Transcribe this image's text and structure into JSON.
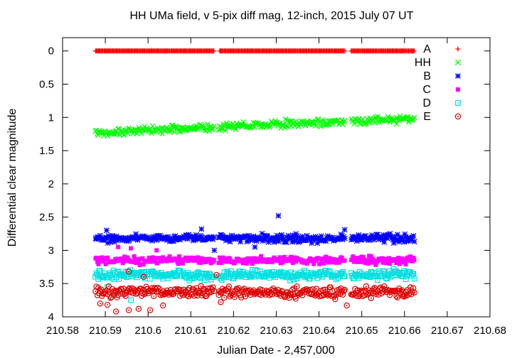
{
  "chart_data": {
    "type": "scatter",
    "title": "HH UMa field, v 5-pix diff mag, 12-inch, 2015 July 07 UT",
    "xlabel": "Julian Date - 2,457,000",
    "ylabel": "Differential clear magnitude",
    "xlim": [
      210.58,
      210.68
    ],
    "ylim": [
      4,
      -0.2
    ],
    "y_inverted": true,
    "x_ticks": [
      "210.58",
      "210.59",
      "210.6",
      "210.61",
      "210.62",
      "210.63",
      "210.64",
      "210.65",
      "210.66",
      "210.67",
      "210.68"
    ],
    "y_ticks": [
      "0",
      "0.5",
      "1",
      "1.5",
      "2",
      "2.5",
      "3",
      "3.5",
      "4"
    ],
    "x_tick_values": [
      210.58,
      210.59,
      210.6,
      210.61,
      210.62,
      210.63,
      210.64,
      210.65,
      210.66,
      210.67,
      210.68
    ],
    "y_tick_values": [
      0,
      0.5,
      1,
      1.5,
      2,
      2.5,
      3,
      3.5,
      4
    ],
    "grid": false,
    "legend_position": "top-right",
    "x_range_observed": [
      210.5877,
      210.6623
    ],
    "gap_ranges": [
      [
        210.6155,
        210.6165
      ],
      [
        210.6462,
        210.6475
      ]
    ],
    "series": [
      {
        "name": "A",
        "marker": "plus",
        "color": "#ff0000",
        "mean": 0.0,
        "trend": 0.0,
        "scatter": 0.0,
        "outliers": []
      },
      {
        "name": "HH",
        "marker": "cross",
        "color": "#00ff00",
        "mean": 1.23,
        "trend": -0.22,
        "scatter": 0.05,
        "outliers": []
      },
      {
        "name": "B",
        "marker": "star",
        "color": "#0000ff",
        "mean": 2.82,
        "trend": 0.0,
        "scatter": 0.05,
        "outliers": [
          [
            210.6305,
            2.48
          ],
          [
            210.6125,
            2.68
          ],
          [
            210.5903,
            2.7
          ],
          [
            210.646,
            2.69
          ],
          [
            210.6155,
            3.0
          ],
          [
            210.625,
            2.95
          ]
        ]
      },
      {
        "name": "C",
        "marker": "filled-square",
        "color": "#ff00ff",
        "mean": 3.15,
        "trend": 0.0,
        "scatter": 0.05,
        "outliers": [
          [
            210.593,
            2.95
          ],
          [
            210.596,
            2.97
          ],
          [
            210.602,
            3.0
          ]
        ]
      },
      {
        "name": "D",
        "marker": "box-dot",
        "color": "#00e0e0",
        "mean": 3.37,
        "trend": 0.0,
        "scatter": 0.06,
        "outliers": [
          [
            210.596,
            3.75
          ],
          [
            210.5905,
            3.55
          ]
        ]
      },
      {
        "name": "E",
        "marker": "circle-dot",
        "color": "#e00000",
        "mean": 3.63,
        "trend": 0.0,
        "scatter": 0.07,
        "outliers": [
          [
            210.5888,
            3.8
          ],
          [
            210.5905,
            3.82
          ],
          [
            210.5925,
            3.92
          ],
          [
            210.5955,
            3.9
          ],
          [
            210.5978,
            3.88
          ],
          [
            210.6005,
            3.9
          ],
          [
            210.5955,
            3.32
          ],
          [
            210.599,
            3.4
          ],
          [
            210.616,
            3.37
          ],
          [
            210.6465,
            3.83
          ],
          [
            210.617,
            3.78
          ],
          [
            210.6035,
            3.83
          ]
        ]
      }
    ]
  }
}
